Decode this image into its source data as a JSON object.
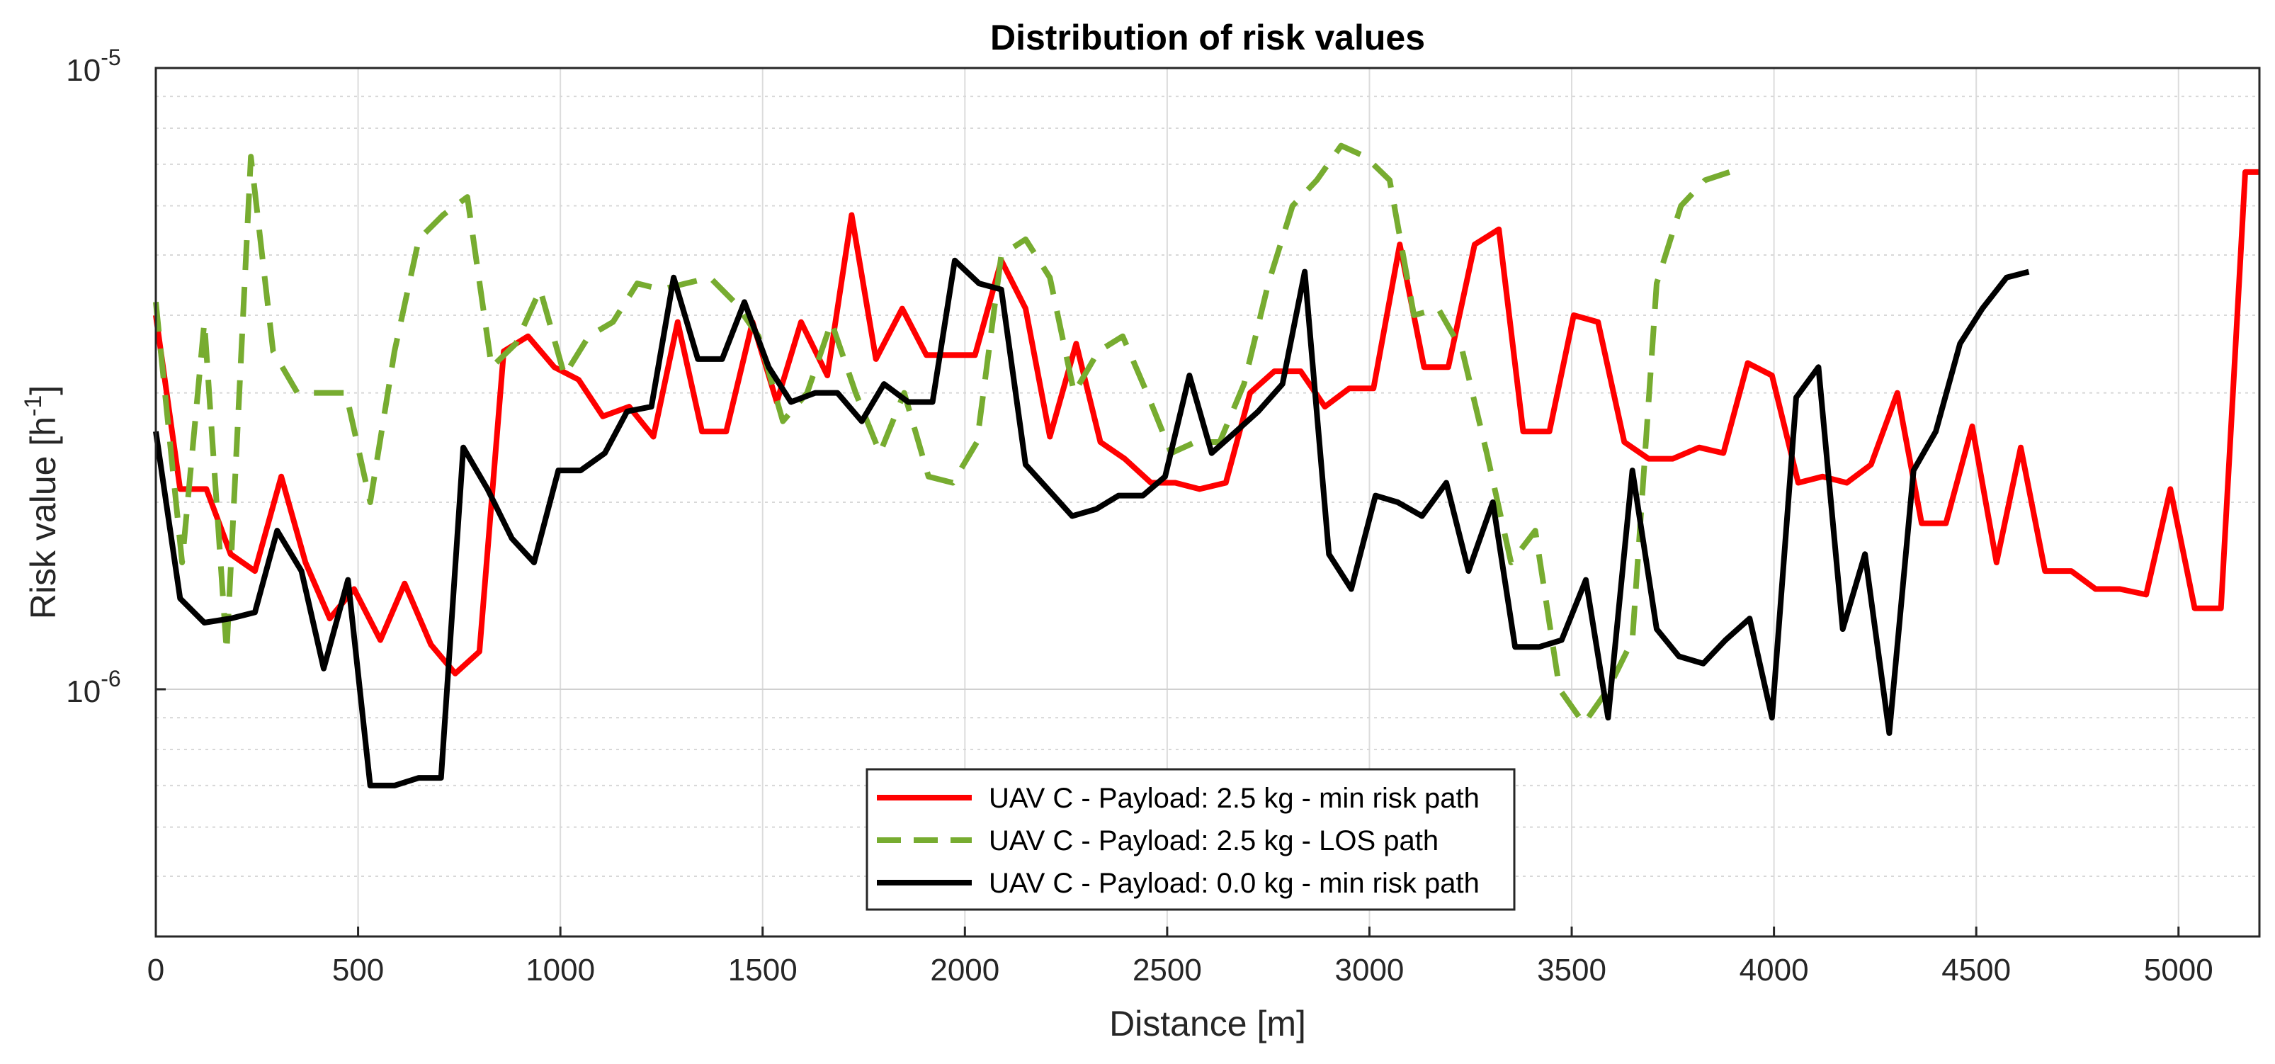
{
  "chart_data": {
    "type": "line",
    "title": "Distribution of risk values",
    "xlabel": "Distance [m]",
    "ylabel": {
      "base": "Risk value [h",
      "sup": "-1",
      "end": "]"
    },
    "xlim": [
      0,
      5200
    ],
    "ylim": [
      4e-07,
      1e-05
    ],
    "yscale": "log",
    "grid": true,
    "xticks": [
      0,
      500,
      1000,
      1500,
      2000,
      2500,
      3000,
      3500,
      4000,
      4500,
      5000
    ],
    "yticks": [
      {
        "value": 1e-06,
        "base": "10",
        "exp": "-6"
      },
      {
        "value": 1e-05,
        "base": "10",
        "exp": "-5"
      }
    ],
    "legend_position": "bottom-center",
    "series": [
      {
        "name": "UAV C - Payload: 2.5 kg - min risk path",
        "color": "#ff0000",
        "style": "solid",
        "x": [
          0,
          60,
          125,
          185,
          245,
          310,
          370,
          430,
          490,
          555,
          615,
          680,
          740,
          800,
          860,
          920,
          985,
          1045,
          1105,
          1170,
          1230,
          1290,
          1350,
          1410,
          1475,
          1535,
          1595,
          1660,
          1720,
          1780,
          1845,
          1905,
          1965,
          2025,
          2090,
          2150,
          2210,
          2275,
          2335,
          2395,
          2460,
          2520,
          2580,
          2645,
          2705,
          2765,
          2830,
          2890,
          2950,
          3010,
          3075,
          3135,
          3195,
          3260,
          3320,
          3380,
          3445,
          3505,
          3565,
          3630,
          3690,
          3750,
          3815,
          3875,
          3935,
          3995,
          4060,
          4120,
          4180,
          4240,
          4305,
          4365,
          4425,
          4490,
          4550,
          4610,
          4670,
          4735,
          4795,
          4855,
          4920,
          4980,
          5040,
          5105,
          5165,
          5200
        ],
        "values": [
          4e-06,
          2.1e-06,
          2.1e-06,
          1.65e-06,
          1.55e-06,
          2.2e-06,
          1.6e-06,
          1.3e-06,
          1.45e-06,
          1.2e-06,
          1.48e-06,
          1.18e-06,
          1.06e-06,
          1.15e-06,
          3.5e-06,
          3.7e-06,
          3.3e-06,
          3.15e-06,
          2.75e-06,
          2.85e-06,
          2.55e-06,
          3.9e-06,
          2.6e-06,
          2.6e-06,
          3.9e-06,
          2.9e-06,
          3.9e-06,
          3.2e-06,
          5.8e-06,
          3.4e-06,
          4.1e-06,
          3.45e-06,
          3.45e-06,
          3.45e-06,
          4.9e-06,
          4.1e-06,
          2.55e-06,
          3.6e-06,
          2.5e-06,
          2.35e-06,
          2.15e-06,
          2.15e-06,
          2.1e-06,
          2.15e-06,
          3e-06,
          3.25e-06,
          3.25e-06,
          2.85e-06,
          3.05e-06,
          3.05e-06,
          5.2e-06,
          3.3e-06,
          3.3e-06,
          5.2e-06,
          5.5e-06,
          2.6e-06,
          2.6e-06,
          4e-06,
          3.9e-06,
          2.5e-06,
          2.35e-06,
          2.35e-06,
          2.45e-06,
          2.4e-06,
          3.35e-06,
          3.2e-06,
          2.15e-06,
          2.2e-06,
          2.15e-06,
          2.3e-06,
          3e-06,
          1.85e-06,
          1.85e-06,
          2.65e-06,
          1.6e-06,
          2.45e-06,
          1.55e-06,
          1.55e-06,
          1.45e-06,
          1.45e-06,
          1.42e-06,
          2.1e-06,
          1.35e-06,
          1.35e-06,
          6.8e-06,
          6.8e-06
        ]
      },
      {
        "name": "UAV C - Payload: 2.5 kg - LOS path",
        "color": "#77ac30",
        "style": "dashed",
        "x": [
          0,
          65,
          120,
          175,
          235,
          290,
          350,
          410,
          470,
          530,
          590,
          650,
          710,
          770,
          830,
          890,
          950,
          1010,
          1070,
          1130,
          1190,
          1250,
          1310,
          1370,
          1430,
          1490,
          1550,
          1610,
          1670,
          1730,
          1790,
          1850,
          1910,
          1970,
          2030,
          2090,
          2150,
          2210,
          2270,
          2330,
          2390,
          2450,
          2510,
          2570,
          2630,
          2690,
          2750,
          2810,
          2870,
          2930,
          2990,
          3050,
          3110,
          3170,
          3230,
          3290,
          3350,
          3410,
          3470,
          3530,
          3590,
          3650,
          3710,
          3770,
          3830,
          3890
        ],
        "values": [
          4.2e-06,
          1.6e-06,
          3.9e-06,
          1.15e-06,
          7.2e-06,
          3.5e-06,
          3e-06,
          3e-06,
          3e-06,
          2e-06,
          3.5e-06,
          5.3e-06,
          5.8e-06,
          6.2e-06,
          3.3e-06,
          3.6e-06,
          4.4e-06,
          3.2e-06,
          3.7e-06,
          3.9e-06,
          4.5e-06,
          4.4e-06,
          4.5e-06,
          4.6e-06,
          4.2e-06,
          3.7e-06,
          2.7e-06,
          3e-06,
          3.9e-06,
          3e-06,
          2.4e-06,
          3e-06,
          2.2e-06,
          2.15e-06,
          2.5e-06,
          5e-06,
          5.3e-06,
          4.6e-06,
          3e-06,
          3.5e-06,
          3.7e-06,
          3e-06,
          2.4e-06,
          2.5e-06,
          2.5e-06,
          3.1e-06,
          4.5e-06,
          6e-06,
          6.6e-06,
          7.5e-06,
          7.2e-06,
          6.6e-06,
          4e-06,
          4.1e-06,
          3.5e-06,
          2.4e-06,
          1.6e-06,
          1.8e-06,
          1e-06,
          8.8e-07,
          1e-06,
          1.2e-06,
          4.5e-06,
          6e-06,
          6.6e-06,
          6.8e-06
        ]
      },
      {
        "name": "UAV C - Payload: 0.0 kg - min risk path",
        "color": "#000000",
        "style": "solid",
        "x": [
          0,
          60,
          120,
          185,
          245,
          300,
          360,
          415,
          475,
          530,
          590,
          650,
          705,
          760,
          820,
          880,
          935,
          995,
          1050,
          1110,
          1165,
          1225,
          1280,
          1340,
          1400,
          1455,
          1515,
          1570,
          1630,
          1685,
          1745,
          1800,
          1860,
          1920,
          1975,
          2035,
          2090,
          2150,
          2205,
          2265,
          2325,
          2380,
          2440,
          2495,
          2555,
          2610,
          2670,
          2725,
          2785,
          2840,
          2900,
          2955,
          3015,
          3070,
          3130,
          3190,
          3245,
          3305,
          3360,
          3420,
          3475,
          3535,
          3590,
          3650,
          3710,
          3765,
          3825,
          3880,
          3940,
          3995,
          4055,
          4110,
          4170,
          4225,
          4285,
          4345,
          4400,
          4460,
          4515,
          4575,
          4630
        ],
        "values": [
          2.6e-06,
          1.4e-06,
          1.28e-06,
          1.3e-06,
          1.33e-06,
          1.8e-06,
          1.55e-06,
          1.08e-06,
          1.5e-06,
          7e-07,
          7e-07,
          7.2e-07,
          7.2e-07,
          2.45e-06,
          2.1e-06,
          1.75e-06,
          1.6e-06,
          2.25e-06,
          2.25e-06,
          2.4e-06,
          2.8e-06,
          2.85e-06,
          4.6e-06,
          3.4e-06,
          3.4e-06,
          4.2e-06,
          3.3e-06,
          2.9e-06,
          3e-06,
          3e-06,
          2.7e-06,
          3.1e-06,
          2.9e-06,
          2.9e-06,
          4.9e-06,
          4.5e-06,
          4.4e-06,
          2.3e-06,
          2.1e-06,
          1.9e-06,
          1.95e-06,
          2.05e-06,
          2.05e-06,
          2.2e-06,
          3.2e-06,
          2.4e-06,
          2.6e-06,
          2.8e-06,
          3.1e-06,
          4.7e-06,
          1.65e-06,
          1.45e-06,
          2.05e-06,
          2e-06,
          1.9e-06,
          2.15e-06,
          1.55e-06,
          2e-06,
          1.17e-06,
          1.17e-06,
          1.2e-06,
          1.5e-06,
          9e-07,
          2.25e-06,
          1.25e-06,
          1.13e-06,
          1.1e-06,
          1.2e-06,
          1.3e-06,
          9e-07,
          2.95e-06,
          3.3e-06,
          1.25e-06,
          1.65e-06,
          8.5e-07,
          2.25e-06,
          2.6e-06,
          3.6e-06,
          4.1e-06,
          4.6e-06,
          4.7e-06
        ]
      }
    ]
  }
}
